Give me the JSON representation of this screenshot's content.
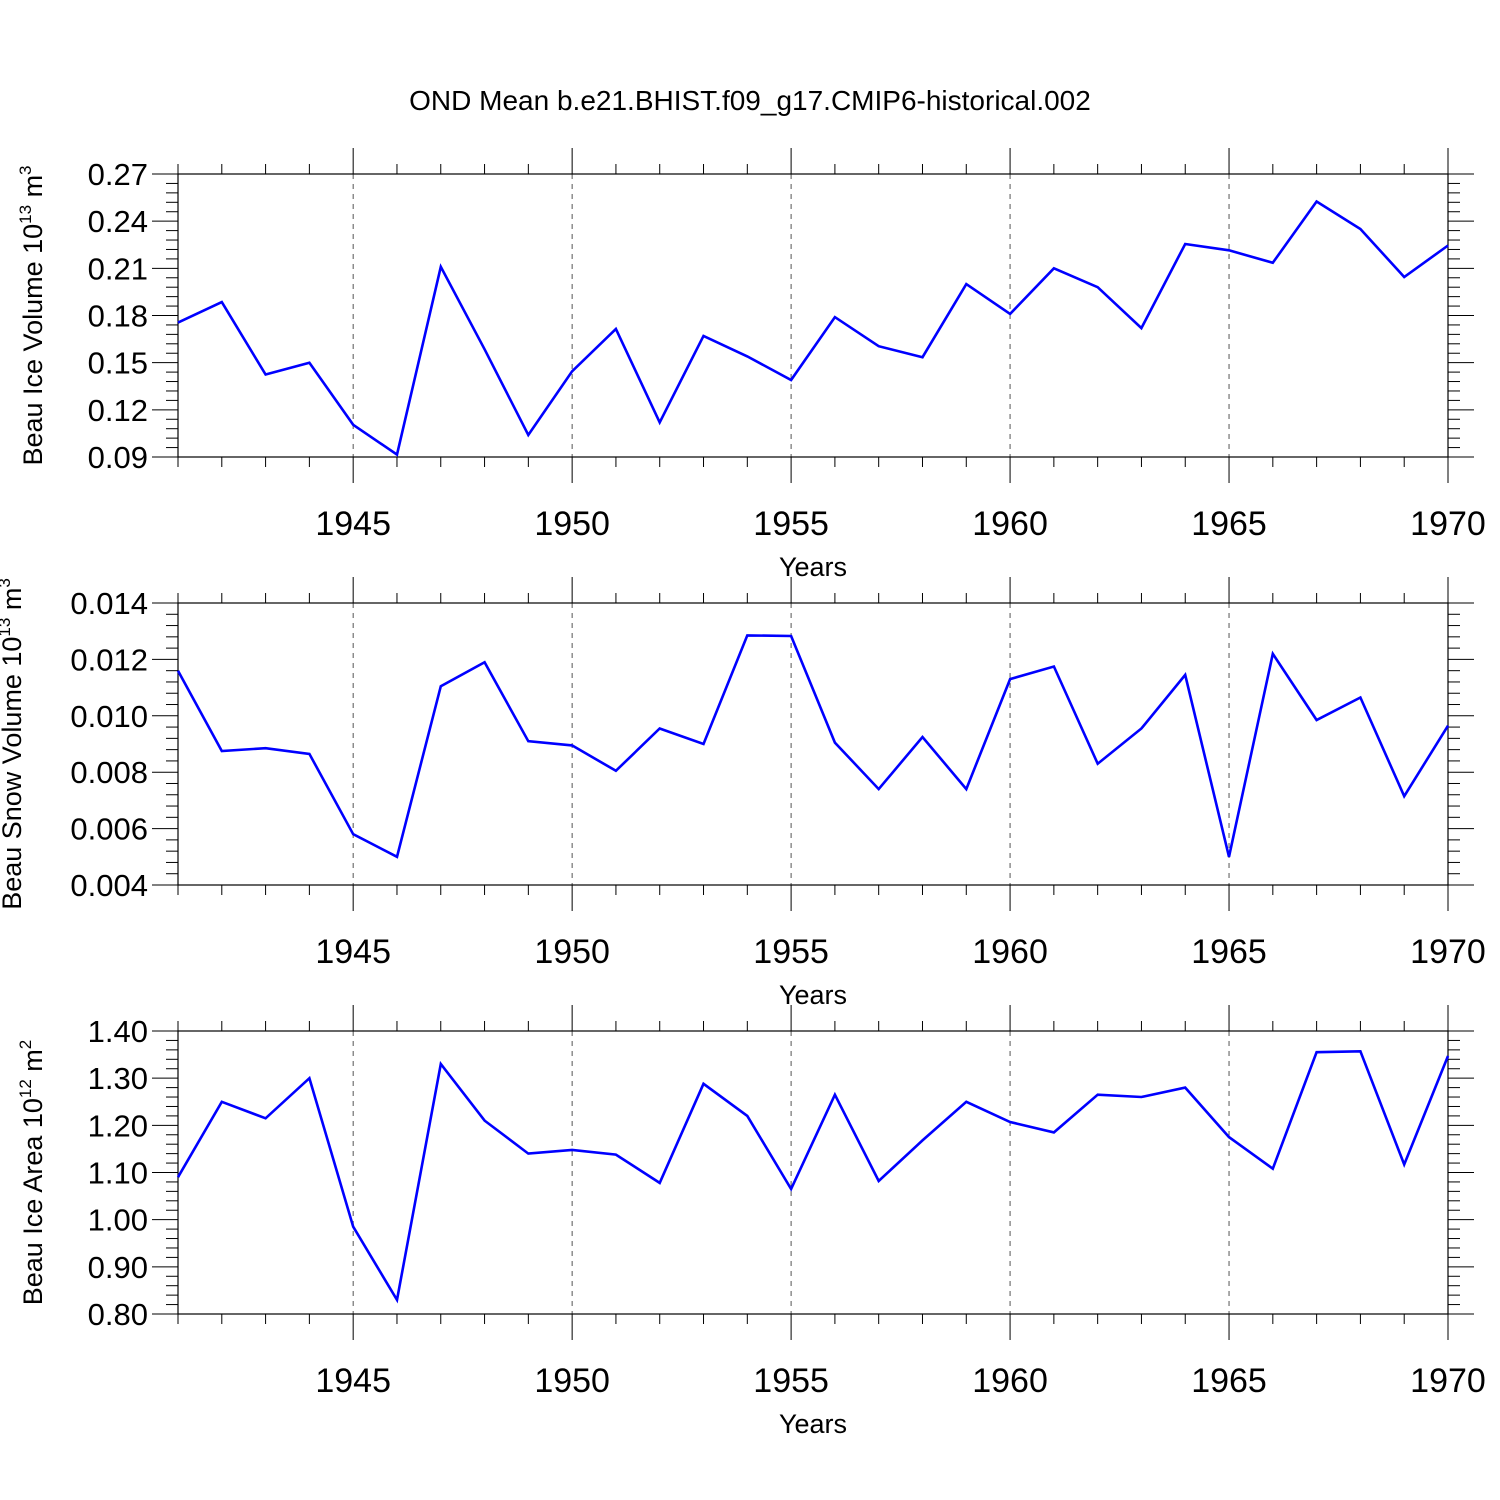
{
  "figure_title": "OND Mean b.e21.BHIST.f09_g17.CMIP6-historical.002",
  "colors": {
    "line": "#0000ff",
    "axis": "#000000",
    "grid": "#555555",
    "background": "#ffffff"
  },
  "chart_data": [
    {
      "type": "line",
      "ylabel": {
        "main": "Beau Ice Volume 10",
        "exp": "13",
        "unit": " m",
        "unit_exp": "3"
      },
      "xlabel": "Years",
      "xlim": [
        1941,
        1970
      ],
      "ylim": [
        0.09,
        0.27
      ],
      "xticks": [
        1945,
        1950,
        1955,
        1960,
        1965,
        1970
      ],
      "yticks": [
        "0.09",
        "0.12",
        "0.15",
        "0.18",
        "0.21",
        "0.24",
        "0.27"
      ],
      "grid": "vertical dashed at major x ticks",
      "x": [
        1941,
        1942,
        1943,
        1944,
        1945,
        1946,
        1947,
        1948,
        1949,
        1950,
        1951,
        1952,
        1953,
        1954,
        1955,
        1956,
        1957,
        1958,
        1959,
        1960,
        1961,
        1962,
        1963,
        1964,
        1965,
        1966,
        1967,
        1968,
        1969,
        1970
      ],
      "values": [
        0.1755,
        0.1885,
        0.1425,
        0.15,
        0.1105,
        0.0915,
        0.211,
        0.1585,
        0.104,
        0.1445,
        0.1715,
        0.112,
        0.167,
        0.154,
        0.139,
        0.179,
        0.1605,
        0.1535,
        0.2,
        0.181,
        0.21,
        0.198,
        0.172,
        0.2255,
        0.2215,
        0.2135,
        0.2525,
        0.235,
        0.2045,
        0.2245
      ]
    },
    {
      "type": "line",
      "ylabel": {
        "main": "Beau Snow Volume 10",
        "exp": "13",
        "unit": " m",
        "unit_exp": "3"
      },
      "xlabel": "Years",
      "xlim": [
        1941,
        1970
      ],
      "ylim": [
        0.004,
        0.014
      ],
      "xticks": [
        1945,
        1950,
        1955,
        1960,
        1965,
        1970
      ],
      "yticks": [
        "0.004",
        "0.006",
        "0.008",
        "0.010",
        "0.012",
        "0.014"
      ],
      "grid": "vertical dashed at major x ticks",
      "x": [
        1941,
        1942,
        1943,
        1944,
        1945,
        1946,
        1947,
        1948,
        1949,
        1950,
        1951,
        1952,
        1953,
        1954,
        1955,
        1956,
        1957,
        1958,
        1959,
        1960,
        1961,
        1962,
        1963,
        1964,
        1965,
        1966,
        1967,
        1968,
        1969,
        1970
      ],
      "values": [
        0.0116,
        0.00875,
        0.00885,
        0.00865,
        0.0058,
        0.005,
        0.01105,
        0.0119,
        0.0091,
        0.00895,
        0.00805,
        0.00955,
        0.009,
        0.01285,
        0.01283,
        0.00905,
        0.0074,
        0.00925,
        0.0074,
        0.0113,
        0.01175,
        0.0083,
        0.00955,
        0.01145,
        0.005,
        0.0122,
        0.00985,
        0.01065,
        0.00715,
        0.00965
      ]
    },
    {
      "type": "line",
      "ylabel": {
        "main": "Beau Ice Area 10",
        "exp": "12",
        "unit": " m",
        "unit_exp": "2"
      },
      "xlabel": "Years",
      "xlim": [
        1941,
        1970
      ],
      "ylim": [
        0.8,
        1.4
      ],
      "xticks": [
        1945,
        1950,
        1955,
        1960,
        1965,
        1970
      ],
      "yticks": [
        "0.80",
        "0.90",
        "1.00",
        "1.10",
        "1.20",
        "1.30",
        "1.40"
      ],
      "grid": "vertical dashed at major x ticks",
      "x": [
        1941,
        1942,
        1943,
        1944,
        1945,
        1946,
        1947,
        1948,
        1949,
        1950,
        1951,
        1952,
        1953,
        1954,
        1955,
        1956,
        1957,
        1958,
        1959,
        1960,
        1961,
        1962,
        1963,
        1964,
        1965,
        1966,
        1967,
        1968,
        1969,
        1970
      ],
      "values": [
        1.09,
        1.25,
        1.215,
        1.3,
        0.985,
        0.83,
        1.33,
        1.21,
        1.14,
        1.148,
        1.138,
        1.078,
        1.288,
        1.22,
        1.065,
        1.265,
        1.082,
        1.168,
        1.25,
        1.207,
        1.185,
        1.265,
        1.26,
        1.28,
        1.175,
        1.108,
        1.355,
        1.357,
        1.117,
        1.347
      ]
    }
  ]
}
